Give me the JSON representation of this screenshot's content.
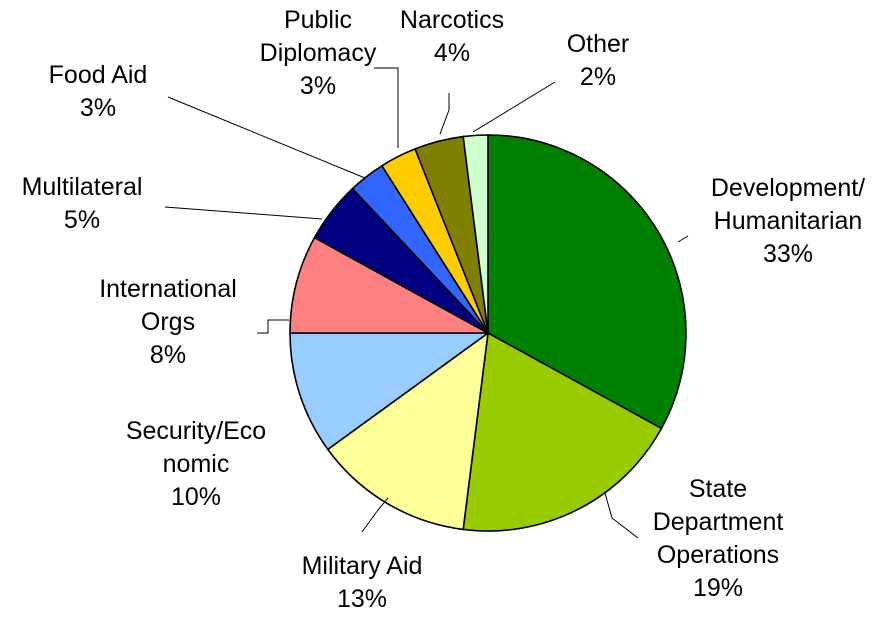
{
  "chart_data": {
    "type": "pie",
    "title": "",
    "start_angle_deg": 0,
    "direction": "clockwise",
    "series": [
      {
        "slices": [
          {
            "name": "Development/ Humanitarian",
            "label_lines": [
              "Development/",
              "Humanitarian"
            ],
            "value": 33,
            "value_label": "33%",
            "color": "#008000"
          },
          {
            "name": "State Department Operations",
            "label_lines": [
              "State",
              "Department",
              "Operations"
            ],
            "value": 19,
            "value_label": "19%",
            "color": "#99CC00"
          },
          {
            "name": "Military Aid",
            "label_lines": [
              "Military Aid"
            ],
            "value": 13,
            "value_label": "13%",
            "color": "#FFFF99"
          },
          {
            "name": "Security/Economic",
            "label_lines": [
              "Security/Eco",
              "nomic"
            ],
            "value": 10,
            "value_label": "10%",
            "color": "#99CCFF"
          },
          {
            "name": "International Orgs",
            "label_lines": [
              "International",
              "Orgs"
            ],
            "value": 8,
            "value_label": "8%",
            "color": "#FF8080"
          },
          {
            "name": "Multilateral",
            "label_lines": [
              "Multilateral"
            ],
            "value": 5,
            "value_label": "5%",
            "color": "#000080"
          },
          {
            "name": "Food Aid",
            "label_lines": [
              "Food Aid"
            ],
            "value": 3,
            "value_label": "3%",
            "color": "#3366FF"
          },
          {
            "name": "Public Diplomacy",
            "label_lines": [
              "Public",
              "Diplomacy"
            ],
            "value": 3,
            "value_label": "3%",
            "color": "#FFCC00"
          },
          {
            "name": "Narcotics",
            "label_lines": [
              "Narcotics"
            ],
            "value": 4,
            "value_label": "4%",
            "color": "#808000"
          },
          {
            "name": "Other",
            "label_lines": [
              "Other"
            ],
            "value": 2,
            "value_label": "2%",
            "color": "#CCFFCC"
          }
        ]
      }
    ],
    "legend": "none",
    "data_labels": "outside with leader lines"
  }
}
